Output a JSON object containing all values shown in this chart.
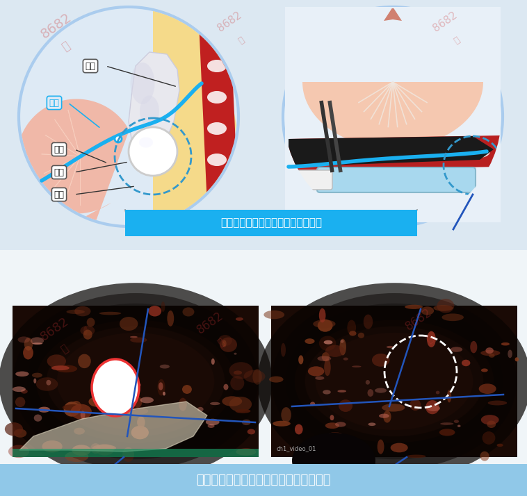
{
  "bg_color": "#dce8f0",
  "top_bg": "#dce8f0",
  "bottom_bg": "#f5f8fa",
  "title_banner_color": "#1ab0f0",
  "title_banner_text": "该部位的筋膜可以原封不动的保留！",
  "title_banner_text_color": "#ffffff",
  "bottom_banner_color": "#90c8e8",
  "bottom_banner_text": "筋膜保存术下筋膜完好保留的内视镜影像",
  "bottom_banner_text_color": "#ffffff",
  "circle_outline_color": "#99bbdd",
  "circle_fill_left": "#deeaf5",
  "circle_fill_right": "#e8f2fa",
  "fascia_line_color": "#1ab0f0",
  "dashed_circle_color": "#3399cc",
  "label_color": "#222222",
  "line_color_blue": "#2255bb",
  "video_label": "ch1_video_01",
  "fig_width": 7.58,
  "fig_height": 7.14
}
